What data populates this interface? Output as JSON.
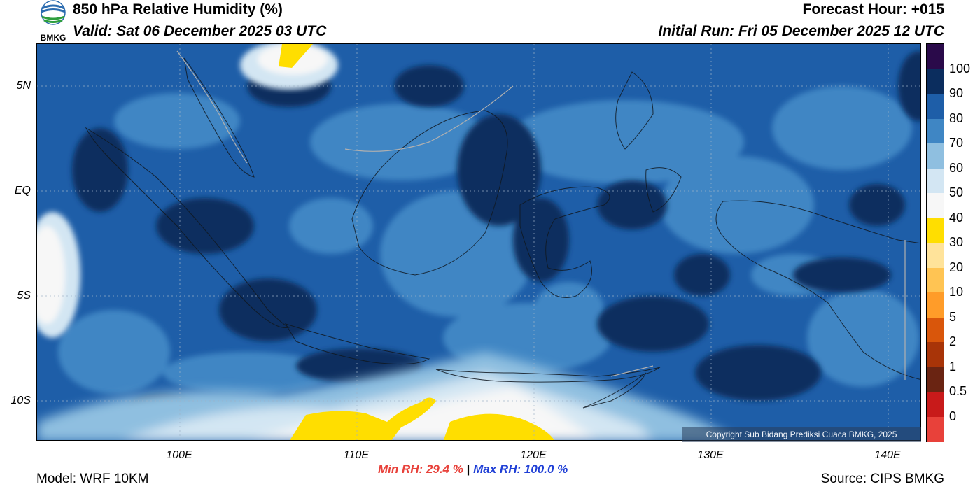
{
  "header": {
    "title": "850 hPa Relative Humidity (%)",
    "valid": "Valid: Sat 06 December 2025 03 UTC",
    "forecast_hour": "Forecast Hour: +015",
    "initial_run": "Initial Run: Fri 05 December 2025 12 UTC",
    "logo_text": "BMKG"
  },
  "axes": {
    "latitude_labels": [
      "5N",
      "EQ",
      "5S",
      "10S"
    ],
    "longitude_labels": [
      "100E",
      "110E",
      "120E",
      "130E",
      "140E"
    ]
  },
  "colorbar": {
    "labels": [
      "100",
      "90",
      "80",
      "70",
      "60",
      "50",
      "40",
      "30",
      "20",
      "10",
      "5",
      "2",
      "1",
      "0.5",
      "0"
    ],
    "colors": [
      "#2a0a4a",
      "#0b2d5e",
      "#1e5ea8",
      "#3f86c4",
      "#8fbfe0",
      "#d3e6f3",
      "#f7f7f7",
      "#ffde00",
      "#ffe39a",
      "#ffc453",
      "#ff9c29",
      "#d9560b",
      "#a83408",
      "#6a2412",
      "#c81a1a",
      "#e8413a"
    ]
  },
  "stats": {
    "min_label": "Min RH:",
    "min_value": "29.4 %",
    "separator": "|",
    "max_label": "Max RH:",
    "max_value": "100.0 %",
    "min_color": "#e8413a",
    "max_color": "#1f3fd6"
  },
  "footer": {
    "model": "Model: WRF 10KM",
    "source": "Source: CIPS BMKG",
    "copyright": "Copyright Sub Bidang Prediksi Cuaca BMKG, 2025"
  }
}
